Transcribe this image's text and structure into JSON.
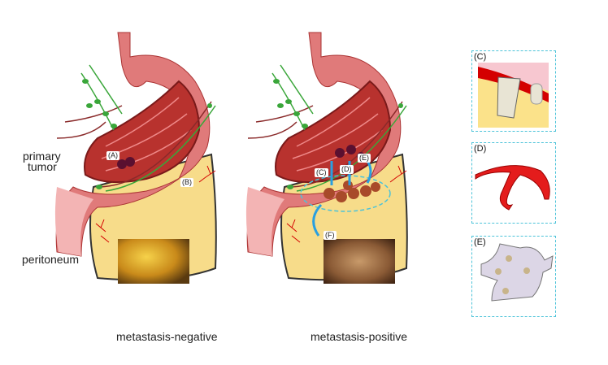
{
  "labels": {
    "primary_tumor": "primary\ntumor",
    "primary_line1": "primary",
    "primary_line2": "tumor",
    "peritoneum": "peritoneum",
    "negative": "metastasis-negative",
    "positive": "metastasis-positive"
  },
  "tags": {
    "A": "(A)",
    "B": "(B)",
    "C": "(C)",
    "D": "(D)",
    "E": "(E)",
    "F": "(F)"
  },
  "panels": [
    {
      "label": "(C)"
    },
    {
      "label": "(D)"
    },
    {
      "label": "(E)"
    }
  ],
  "colors": {
    "stomach": "#e07a7a",
    "omentum": "#f7dc8a",
    "vessel": "#d40000",
    "lymph": "#3aa63a",
    "arrow": "#2a9fe0",
    "panel_border": "#4cc3d9"
  }
}
